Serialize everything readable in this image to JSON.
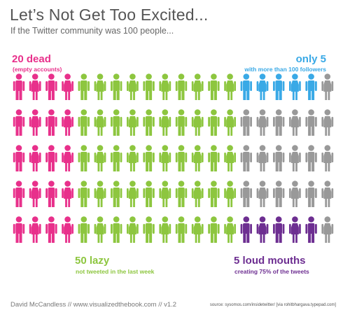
{
  "header": {
    "title": "Let’s Not Get Too Excited...",
    "subtitle": "If the Twitter community was 100 people..."
  },
  "labels": {
    "dead": {
      "big": "20 dead",
      "small": "(empty accounts)"
    },
    "only": {
      "big": "only 5",
      "small": "with more than 100 followers"
    },
    "lazy": {
      "big": "50 lazy",
      "small": "not tweeted in the last week"
    },
    "loud": {
      "big": "5 loud mouths",
      "small": "creating 75% of the tweets"
    }
  },
  "footer": {
    "credit": "David McCandless // www.visualizedthebook.com // v1.2",
    "source": "source: sysomos.com/insidetwitter/ [via rohitbhargava.typepad.com]"
  },
  "chart_data": {
    "type": "pictogram",
    "total": 100,
    "rows": 5,
    "columns": 20,
    "icon": "person-icon",
    "groups": [
      {
        "key": "dead",
        "count": 20,
        "color": "#e8308b"
      },
      {
        "key": "lazy",
        "count": 50,
        "color": "#8dc63f"
      },
      {
        "key": "only",
        "count": 5,
        "color": "#39a9e6"
      },
      {
        "key": "loud",
        "count": 5,
        "color": "#6d2e91"
      },
      {
        "key": "other",
        "count": 20,
        "color": "#999999"
      }
    ],
    "grid": [
      "PPPPGGGGGGGGGGBBBBBX",
      "PPPPGGGGGGGGGGXXXXXX",
      "PPPPGGGGGGGGGGXXXXXX",
      "PPPPGGGGGGGGGGXXXXXX",
      "PPPPGGGGGGGGGGUUUUUX"
    ],
    "pattern": "MFMFMFMFMFMFMFMFMFMF",
    "legend": {
      "P": "dead",
      "G": "lazy",
      "B": "only",
      "U": "loud",
      "X": "other"
    }
  }
}
